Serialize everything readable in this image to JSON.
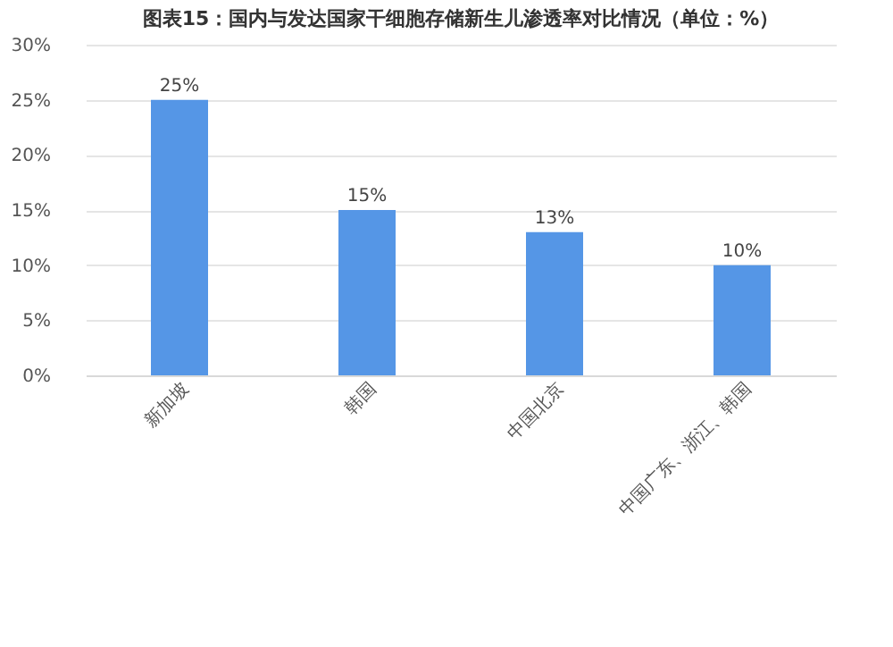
{
  "chart_data": {
    "type": "bar",
    "title": "图表15：国内与发达国家干细胞存储新生儿渗透率对比情况（单位：%）",
    "categories": [
      "新加坡",
      "韩国",
      "中国北京",
      "中国广东、浙江、韩国"
    ],
    "values": [
      25,
      15,
      13,
      10
    ],
    "color": "#5596e6",
    "value_labels": [
      "25%",
      "15%",
      "13%",
      "10%"
    ],
    "ylim": [
      0,
      30
    ],
    "yticks": [
      {
        "value": 0,
        "label": "0%"
      },
      {
        "value": 5,
        "label": "5%"
      },
      {
        "value": 10,
        "label": "10%"
      },
      {
        "value": 15,
        "label": "15%"
      },
      {
        "value": 20,
        "label": "20%"
      },
      {
        "value": 25,
        "label": "25%"
      },
      {
        "value": 30,
        "label": "30%"
      }
    ],
    "grid": "y"
  }
}
